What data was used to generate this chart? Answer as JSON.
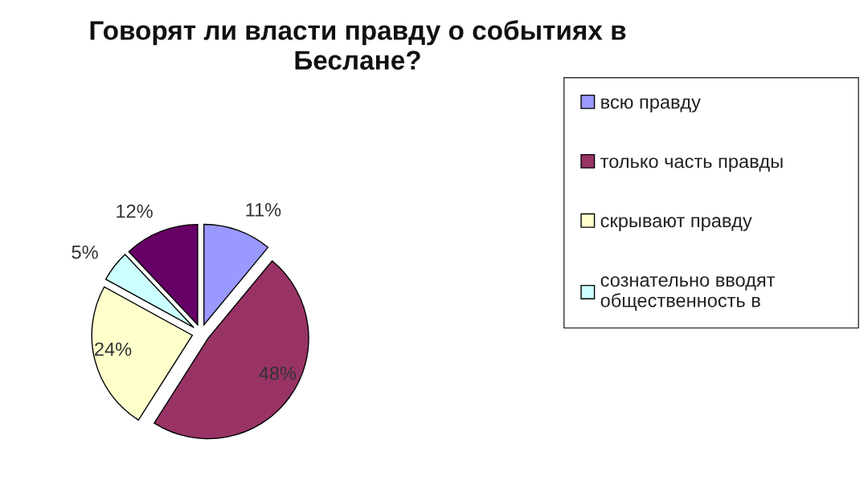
{
  "chart_data": {
    "type": "pie",
    "title": "Говорят ли власти правду о событиях в\nБеслане?",
    "categories": [
      "всю правду",
      "только часть правды",
      "скрывают правду",
      "сознательно вводят\nобщественность в",
      null
    ],
    "values": [
      11,
      48,
      24,
      5,
      12
    ],
    "value_labels": [
      "11%",
      "48%",
      "24%",
      "5%",
      "12%"
    ],
    "colors": [
      "#9999ff",
      "#993366",
      "#ffffcc",
      "#ccffff",
      "#660066"
    ],
    "legend": "right"
  }
}
